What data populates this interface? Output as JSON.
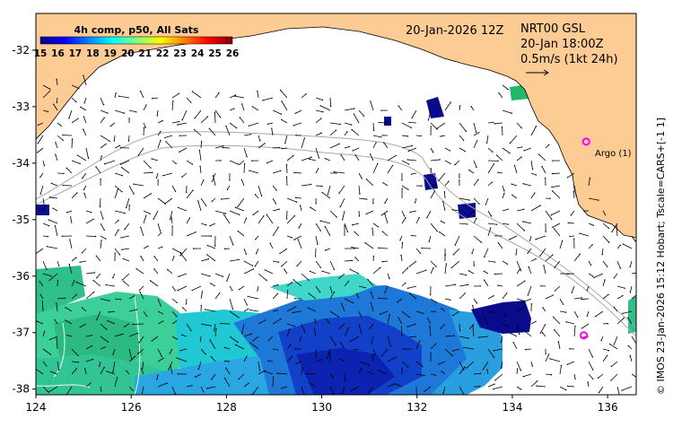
{
  "header": {
    "date": "20-Jan-2026 12Z",
    "product": "NRT00 GSL",
    "current_time": "20-Jan 18:00Z",
    "scale_arrow_label": "0.5m/s (1kt 24h)"
  },
  "colorbar": {
    "title": "4h comp, p50, All Sats",
    "ticks": [
      "15",
      "16",
      "17",
      "18",
      "19",
      "20",
      "21",
      "22",
      "23",
      "24",
      "25",
      "26"
    ],
    "range": [
      15,
      26
    ]
  },
  "axes": {
    "x_ticks": [
      "124",
      "126",
      "128",
      "130",
      "132",
      "134",
      "136"
    ],
    "y_ticks": [
      "-32",
      "-33",
      "-34",
      "-35",
      "-36",
      "-37",
      "-38"
    ],
    "lon_range": [
      124,
      136.6
    ],
    "lat_range": [
      -38.1,
      -31.35
    ]
  },
  "markers": {
    "argo_label": "Argo (1)",
    "argo_points": [
      {
        "lon": 135.55,
        "lat": -33.62
      },
      {
        "lon": 135.5,
        "lat": -37.05
      }
    ]
  },
  "credit": "© IMOS 23-Jan-2026 15:12 Hobart; Tscale=CARS+[-1 1]",
  "colors": {
    "land": "#fdcb94",
    "argo": "#ff00ff",
    "isobath": "#a8a8a8"
  }
}
